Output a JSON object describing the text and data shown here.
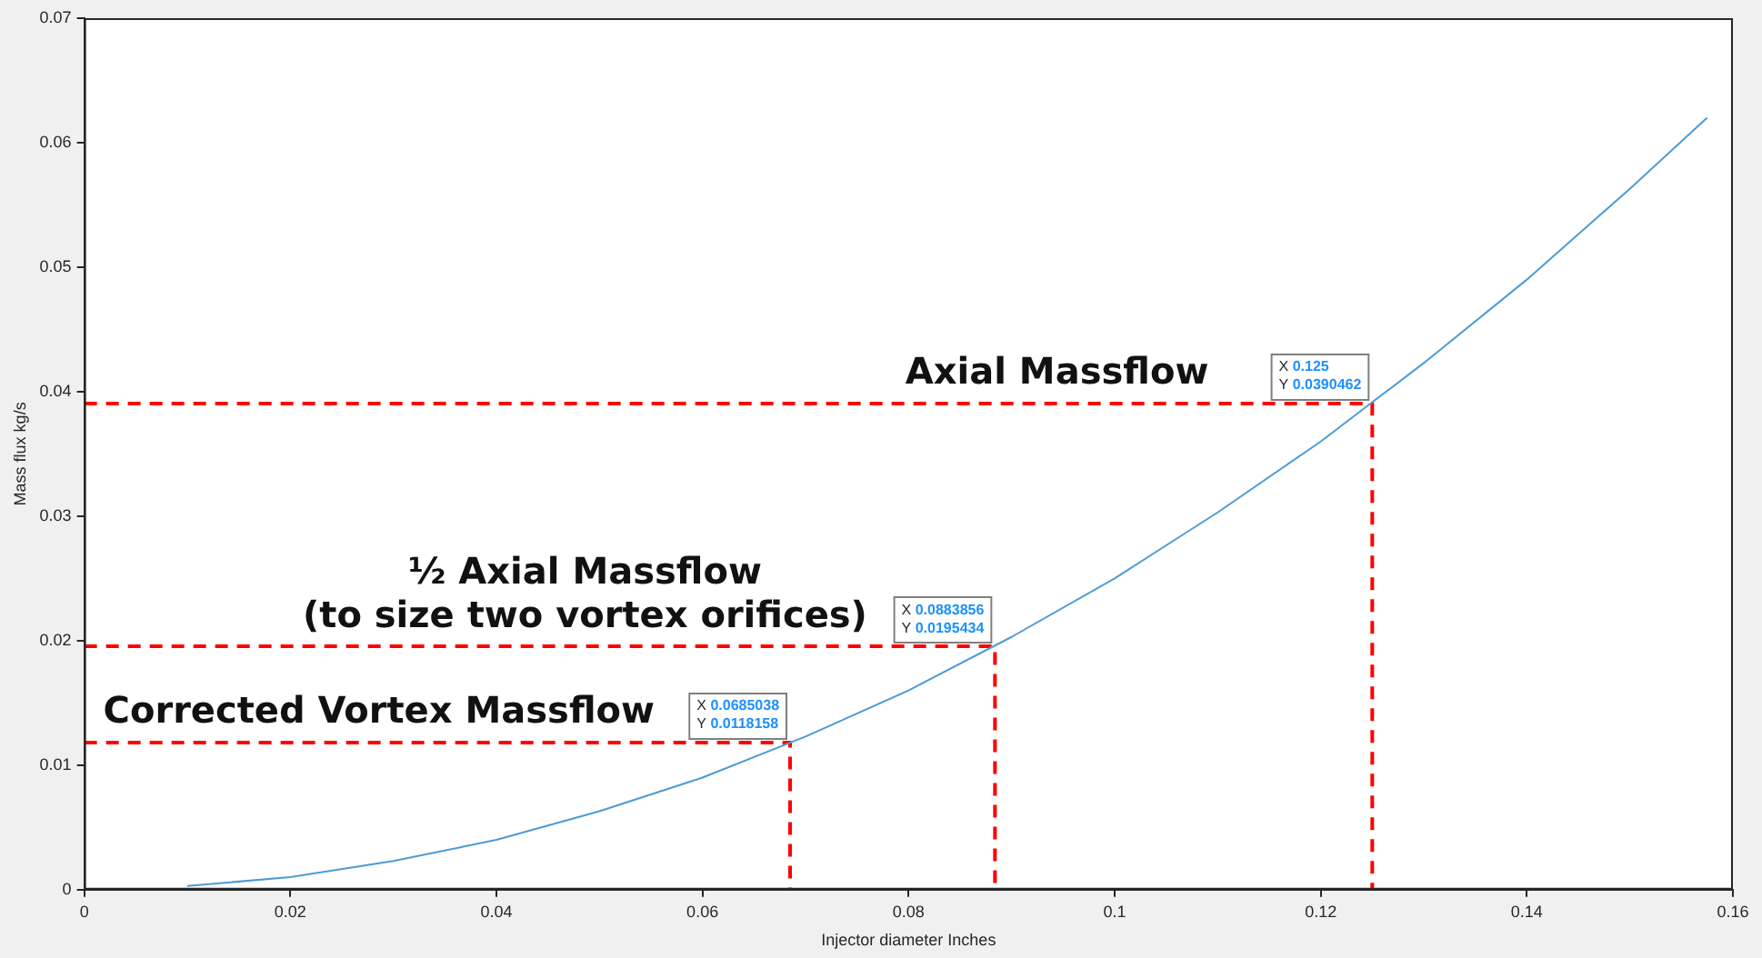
{
  "chart_data": {
    "type": "line",
    "xlabel": "Injector diameter Inches",
    "ylabel": "Mass flux kg/s",
    "xlim": [
      0,
      0.16
    ],
    "xticks": [
      0,
      0.02,
      0.04,
      0.06,
      0.08,
      0.1,
      0.12,
      0.14,
      0.16
    ],
    "ylim": [
      0,
      0.07
    ],
    "yticks": [
      0,
      0.01,
      0.02,
      0.03,
      0.04,
      0.05,
      0.06,
      0.07
    ],
    "grid": false,
    "legend": false,
    "marker": "none",
    "series": [
      {
        "color": "#4d9bd6",
        "line_style": "solid",
        "x": [
          0.01,
          0.02,
          0.03,
          0.04,
          0.05,
          0.06,
          0.07,
          0.08,
          0.09,
          0.1,
          0.11,
          0.12,
          0.13,
          0.14,
          0.15,
          0.1575
        ],
        "values": [
          0.0003,
          0.001,
          0.0023,
          0.004,
          0.0063,
          0.009,
          0.0123,
          0.016,
          0.0203,
          0.025,
          0.0303,
          0.036,
          0.0423,
          0.049,
          0.0563,
          0.062
        ]
      },
      {
        "color": "#ff0000",
        "line_style": "dashed",
        "x": [
          0,
          0.125,
          0.125
        ],
        "values": [
          0.0390462,
          0.0390462,
          0
        ],
        "value_labels": [
          null,
          "X 0.125\nY 0.0390462",
          null
        ]
      },
      {
        "color": "#ff0000",
        "line_style": "dashed",
        "x": [
          0,
          0.0883856,
          0.0883856
        ],
        "values": [
          0.0195434,
          0.0195434,
          0
        ],
        "value_labels": [
          null,
          "X 0.0883856\nY 0.0195434",
          null
        ]
      },
      {
        "color": "#ff0000",
        "line_style": "dashed",
        "x": [
          0,
          0.0685038,
          0.0685038
        ],
        "values": [
          0.0118158,
          0.0118158,
          0
        ],
        "value_labels": [
          null,
          "X 0.0685038\nY 0.0118158",
          null
        ]
      }
    ],
    "annotations": [
      {
        "text": "Axial Massflow",
        "x": 0.0944,
        "y": 0.0390462
      },
      {
        "text": "½ Axial Massflow\n(to size two vortex orifices)",
        "x": 0.0486,
        "y": 0.0195434
      },
      {
        "text": "Corrected Vortex Massflow",
        "x": 0.0286,
        "y": 0.0118158
      }
    ]
  }
}
